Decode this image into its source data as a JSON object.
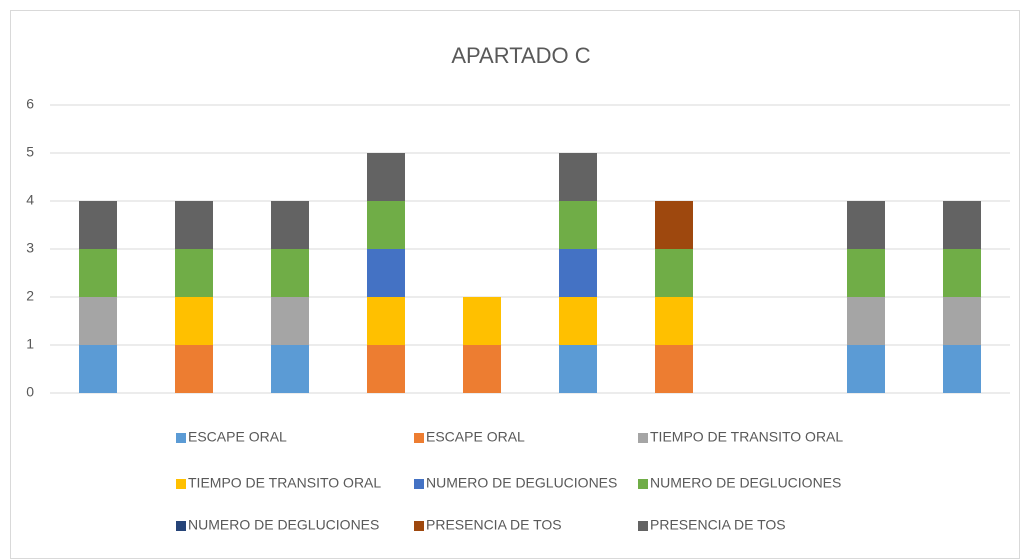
{
  "chart_data": {
    "type": "stacked_bar",
    "title": "APARTADO C",
    "categories": [
      null,
      null,
      null,
      null,
      null,
      null,
      null,
      null,
      null,
      null
    ],
    "series": [
      {
        "name": "ESCAPE ORAL",
        "color": "#5b9bd5",
        "values": [
          1,
          0,
          1,
          0,
          0,
          1,
          0,
          0,
          1,
          1
        ]
      },
      {
        "name": "ESCAPE ORAL",
        "color": "#ed7d31",
        "values": [
          0,
          1,
          0,
          1,
          1,
          0,
          1,
          0,
          0,
          0
        ]
      },
      {
        "name": "TIEMPO DE TRANSITO ORAL",
        "color": "#a5a5a5",
        "values": [
          1,
          0,
          1,
          0,
          0,
          0,
          0,
          0,
          1,
          1
        ]
      },
      {
        "name": "TIEMPO DE TRANSITO ORAL",
        "color": "#ffc000",
        "values": [
          0,
          1,
          0,
          1,
          1,
          1,
          1,
          0,
          0,
          0
        ]
      },
      {
        "name": "NUMERO DE DEGLUCIONES",
        "color": "#4472c4",
        "values": [
          0,
          0,
          0,
          1,
          0,
          1,
          0,
          0,
          0,
          0
        ]
      },
      {
        "name": "NUMERO DE DEGLUCIONES",
        "color": "#70ad47",
        "values": [
          1,
          1,
          1,
          1,
          0,
          1,
          1,
          0,
          1,
          1
        ]
      },
      {
        "name": "NUMERO DE DEGLUCIONES",
        "color": "#264478",
        "values": [
          0,
          0,
          0,
          0,
          0,
          0,
          0,
          0,
          0,
          0
        ]
      },
      {
        "name": "PRESENCIA DE TOS",
        "color": "#9e480e",
        "values": [
          0,
          0,
          0,
          0,
          0,
          0,
          1,
          0,
          0,
          0
        ]
      },
      {
        "name": "PRESENCIA DE TOS",
        "color": "#636363",
        "values": [
          1,
          1,
          1,
          1,
          0,
          1,
          0,
          0,
          1,
          1
        ]
      }
    ],
    "ylim": [
      0,
      6
    ],
    "yticks": [
      0,
      1,
      2,
      3,
      4,
      5,
      6
    ],
    "grid": true,
    "legend": "bottom"
  }
}
